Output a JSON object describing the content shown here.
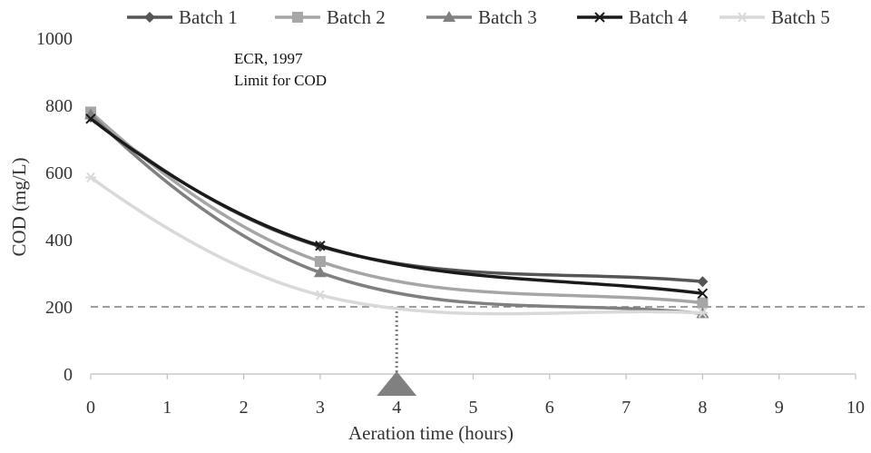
{
  "chart_data": {
    "type": "line",
    "xlabel": "Aeration time (hours)",
    "ylabel": "COD (mg/L)",
    "xlim": [
      0,
      10
    ],
    "ylim": [
      0,
      1000
    ],
    "x_ticks": [
      0,
      1,
      2,
      3,
      4,
      5,
      6,
      7,
      8,
      9,
      10
    ],
    "y_ticks": [
      0,
      200,
      400,
      600,
      800,
      1000
    ],
    "grid": false,
    "legend_position": "top",
    "x": [
      0,
      3,
      8
    ],
    "series": [
      {
        "name": "Batch 1",
        "values": [
          765,
          380,
          275
        ],
        "color": "#555555",
        "marker": "diamond"
      },
      {
        "name": "Batch 2",
        "values": [
          780,
          335,
          212
        ],
        "color": "#a6a6a6",
        "marker": "square"
      },
      {
        "name": "Batch 3",
        "values": [
          772,
          302,
          180
        ],
        "color": "#808080",
        "marker": "triangle"
      },
      {
        "name": "Batch 4",
        "values": [
          760,
          382,
          240
        ],
        "color": "#1a1a1a",
        "marker": "x"
      },
      {
        "name": "Batch 5",
        "values": [
          585,
          235,
          182
        ],
        "color": "#d9d9d9",
        "marker": "star"
      }
    ],
    "reference_line": {
      "y": 200,
      "color": "#7f7f7f"
    },
    "annotation": {
      "line1": "ECR, 1997",
      "line2": "Limit for COD"
    },
    "marker_x": 4,
    "marker_color": "#808080"
  }
}
